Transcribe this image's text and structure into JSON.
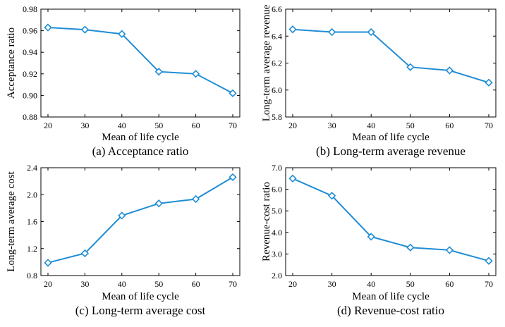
{
  "style": {
    "line_color": "#1f8dd6",
    "axis_color": "#000000"
  },
  "chart_data": [
    {
      "type": "line",
      "caption": "(a) Acceptance ratio",
      "xlabel": "Mean of life cycle",
      "ylabel": "Acceptance ratio",
      "x": [
        20,
        30,
        40,
        50,
        60,
        70
      ],
      "y": [
        0.963,
        0.961,
        0.957,
        0.922,
        0.92,
        0.902
      ],
      "ylim": [
        0.88,
        0.98
      ],
      "yticks": [
        "0.88",
        "0.90",
        "0.92",
        "0.94",
        "0.96",
        "0.98"
      ],
      "xticks": [
        "20",
        "30",
        "40",
        "50",
        "60",
        "70"
      ],
      "marker": "diamond",
      "grid": false
    },
    {
      "type": "line",
      "caption": "(b) Long-term average revenue",
      "xlabel": "Mean of life cycle",
      "ylabel": "Long-term average revenue",
      "x": [
        20,
        30,
        40,
        50,
        60,
        70
      ],
      "y": [
        6.45,
        6.43,
        6.43,
        6.17,
        6.145,
        6.055
      ],
      "ylim": [
        5.8,
        6.6
      ],
      "yticks": [
        "5.8",
        "6.0",
        "6.2",
        "6.4",
        "6.6"
      ],
      "xticks": [
        "20",
        "30",
        "40",
        "50",
        "60",
        "70"
      ],
      "marker": "diamond",
      "grid": false
    },
    {
      "type": "line",
      "caption": "(c) Long-term average cost",
      "xlabel": "Mean of life cycle",
      "ylabel": "Long-term average cost",
      "x": [
        20,
        30,
        40,
        50,
        60,
        70
      ],
      "y": [
        0.99,
        1.13,
        1.69,
        1.87,
        1.935,
        2.26
      ],
      "ylim": [
        0.8,
        2.4
      ],
      "yticks": [
        "0.8",
        "1.2",
        "1.6",
        "2.0",
        "2.4"
      ],
      "xticks": [
        "20",
        "30",
        "40",
        "50",
        "60",
        "70"
      ],
      "marker": "diamond",
      "grid": false
    },
    {
      "type": "line",
      "caption": "(d) Revenue-cost ratio",
      "xlabel": "Mean of life cycle",
      "ylabel": "Revenue-cost ratio",
      "x": [
        20,
        30,
        40,
        50,
        60,
        70
      ],
      "y": [
        6.5,
        5.7,
        3.8,
        3.3,
        3.18,
        2.68
      ],
      "ylim": [
        2.0,
        7.0
      ],
      "yticks": [
        "2.0",
        "3.0",
        "4.0",
        "5.0",
        "6.0",
        "7.0"
      ],
      "xticks": [
        "20",
        "30",
        "40",
        "50",
        "60",
        "70"
      ],
      "marker": "diamond",
      "grid": false
    }
  ]
}
